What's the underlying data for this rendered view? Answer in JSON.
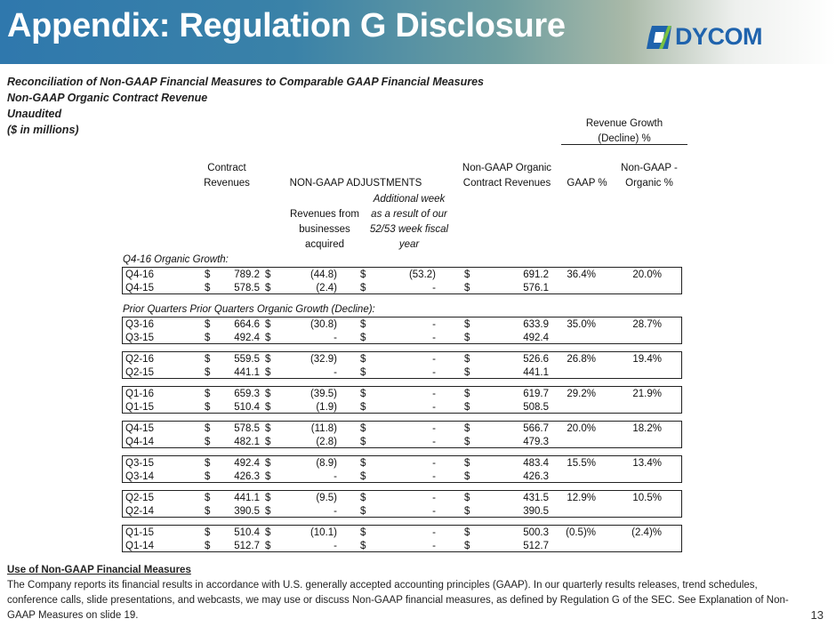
{
  "header": {
    "title": "Appendix: Regulation G Disclosure",
    "logo_text": "DYCOM",
    "brand_colors": {
      "blue": "#1f63ad",
      "green": "#7ac143"
    }
  },
  "subtitles": [
    "Reconciliation of Non-GAAP Financial Measures to Comparable GAAP Financial Measures",
    "Non-GAAP Organic Contract Revenue",
    "Unaudited",
    "($ in millions)"
  ],
  "table": {
    "growth_header": [
      "Revenue Growth",
      "(Decline) %"
    ],
    "col_contract": [
      "Contract",
      "Revenues"
    ],
    "col_adjustments": "NON-GAAP ADJUSTMENTS",
    "col_organic": [
      "Non-GAAP Organic",
      "Contract Revenues"
    ],
    "col_gaap": "GAAP %",
    "col_nongaap": [
      "Non-GAAP -",
      "Organic %"
    ],
    "sub_acquired": [
      "Revenues from",
      "businesses",
      "acquired"
    ],
    "sub_week": [
      "Additional week",
      "as a result of our",
      "52/53 week fiscal",
      "year"
    ],
    "section1": "Q4-16 Organic Growth:",
    "section2": "Prior Quarters  Prior Quarters Organic Growth (Decline):",
    "currency": "$",
    "groups": [
      {
        "rows": [
          [
            "Q4-16",
            "789.2",
            "(44.8)",
            "(53.2)",
            "691.2"
          ],
          [
            "Q4-15",
            "578.5",
            "(2.4)",
            "-",
            "576.1"
          ]
        ],
        "gaap": "36.4%",
        "organic": "20.0%"
      },
      {
        "rows": [
          [
            "Q3-16",
            "664.6",
            "(30.8)",
            "-",
            "633.9"
          ],
          [
            "Q3-15",
            "492.4",
            "-",
            "-",
            "492.4"
          ]
        ],
        "gaap": "35.0%",
        "organic": "28.7%"
      },
      {
        "rows": [
          [
            "Q2-16",
            "559.5",
            "(32.9)",
            "-",
            "526.6"
          ],
          [
            "Q2-15",
            "441.1",
            "-",
            "-",
            "441.1"
          ]
        ],
        "gaap": "26.8%",
        "organic": "19.4%"
      },
      {
        "rows": [
          [
            "Q1-16",
            "659.3",
            "(39.5)",
            "-",
            "619.7"
          ],
          [
            "Q1-15",
            "510.4",
            "(1.9)",
            "-",
            "508.5"
          ]
        ],
        "gaap": "29.2%",
        "organic": "21.9%"
      },
      {
        "rows": [
          [
            "Q4-15",
            "578.5",
            "(11.8)",
            "-",
            "566.7"
          ],
          [
            "Q4-14",
            "482.1",
            "(2.8)",
            "-",
            "479.3"
          ]
        ],
        "gaap": "20.0%",
        "organic": "18.2%"
      },
      {
        "rows": [
          [
            "Q3-15",
            "492.4",
            "(8.9)",
            "-",
            "483.4"
          ],
          [
            "Q3-14",
            "426.3",
            "-",
            "-",
            "426.3"
          ]
        ],
        "gaap": "15.5%",
        "organic": "13.4%"
      },
      {
        "rows": [
          [
            "Q2-15",
            "441.1",
            "(9.5)",
            "-",
            "431.5"
          ],
          [
            "Q2-14",
            "390.5",
            "-",
            "-",
            "390.5"
          ]
        ],
        "gaap": "12.9%",
        "organic": "10.5%"
      },
      {
        "rows": [
          [
            "Q1-15",
            "510.4",
            "(10.1)",
            "-",
            "500.3"
          ],
          [
            "Q1-14",
            "512.7",
            "-",
            "-",
            "512.7"
          ]
        ],
        "gaap": "(0.5)%",
        "organic": "(2.4)%"
      }
    ]
  },
  "footer": {
    "heading": "Use of Non-GAAP Financial Measures",
    "text": "The Company reports its financial results in accordance with U.S. generally accepted accounting principles (GAAP). In our quarterly results releases, trend schedules, conference calls, slide presentations, and webcasts, we may use or discuss Non-GAAP financial measures, as defined by Regulation G of the SEC. See Explanation of Non-GAAP Measures on slide 19."
  },
  "page_number": "13"
}
